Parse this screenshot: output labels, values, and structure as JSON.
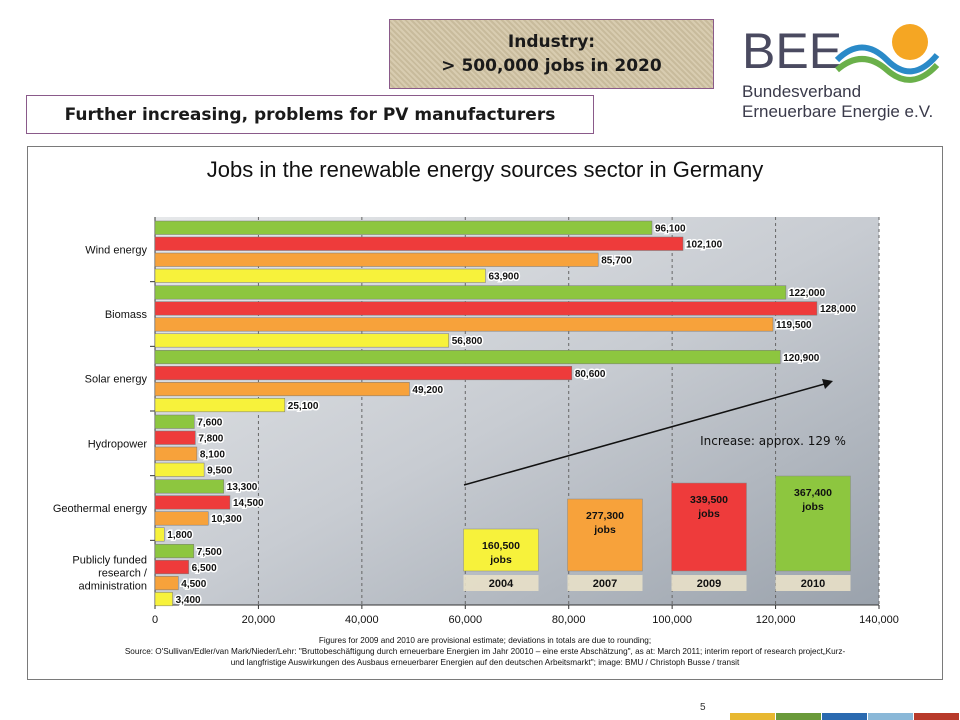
{
  "header": {
    "industry_line1": "Industry:",
    "industry_line2": "> 500,000 jobs in 2020",
    "subtitle": "Further increasing, problems for PV manufacturers"
  },
  "logo": {
    "mark": "BEE",
    "line1": "Bundesverband",
    "line2": "Erneuerbare Energie e.V."
  },
  "chart_data": {
    "type": "bar",
    "orientation": "horizontal",
    "title": "Jobs in the renewable energy sources sector in Germany",
    "categories": [
      "Wind energy",
      "Biomass",
      "Solar energy",
      "Hydropower",
      "Geothermal energy",
      "Publicly funded research / administration"
    ],
    "series": [
      {
        "name": "2010",
        "color": "#8dc63f",
        "values": [
          96100,
          122000,
          120900,
          7600,
          13300,
          7500
        ],
        "labels": [
          "96,100",
          "122,000",
          "120,900",
          "7,600",
          "13,300",
          "7,500"
        ]
      },
      {
        "name": "2009",
        "color": "#ee3b3b",
        "values": [
          102100,
          128000,
          80600,
          7800,
          14500,
          6500
        ],
        "labels": [
          "102,100",
          "128,000",
          "80,600",
          "7,800",
          "14,500",
          "6,500"
        ]
      },
      {
        "name": "2007",
        "color": "#f7a23b",
        "values": [
          85700,
          119500,
          49200,
          8100,
          10300,
          4500
        ],
        "labels": [
          "85,700",
          "119,500",
          "49,200",
          "8,100",
          "10,300",
          "4,500"
        ]
      },
      {
        "name": "2004",
        "color": "#f7f23b",
        "values": [
          63900,
          56800,
          25100,
          9500,
          1800,
          3400
        ],
        "labels": [
          "63,900",
          "56,800",
          "25,100",
          "9,500",
          "1,800",
          "3,400"
        ]
      }
    ],
    "xlim": [
      0,
      140000
    ],
    "xticks": [
      "0",
      "20,000",
      "40,000",
      "60,000",
      "80,000",
      "100,000",
      "120,000",
      "140,000"
    ],
    "grid": "vertical dashed",
    "annotation": "Increase: approx. 129 %",
    "totals": [
      {
        "year": "2004",
        "value": 160500,
        "label_value": "160,500",
        "label_unit": "jobs",
        "color": "#f7f23b"
      },
      {
        "year": "2007",
        "value": 277300,
        "label_value": "277,300",
        "label_unit": "jobs",
        "color": "#f7a23b"
      },
      {
        "year": "2009",
        "value": 339500,
        "label_value": "339,500",
        "label_unit": "jobs",
        "color": "#ee3b3b"
      },
      {
        "year": "2010",
        "value": 367400,
        "label_value": "367,400",
        "label_unit": "jobs",
        "color": "#8dc63f"
      }
    ],
    "footnote_lines": [
      "Figures for 2009 and 2010 are provisional estimate; deviations in totals are due to rounding;",
      "Source: O'Sullivan/Edler/van Mark/Nieder/Lehr: \"Bruttobeschäftigung durch erneuerbare Energien im Jahr 20010 – eine erste Abschätzung\", as at: March 2011; interim report of research project„Kurz-",
      "und langfristige Auswirkungen des Ausbaus erneuerbarer Energien auf den deutschen Arbeitsmarkt\"; image: BMU / Christoph Busse / transit"
    ]
  },
  "footer": {
    "page_number": "5",
    "strip_colors": [
      "#e8b830",
      "#6a9a3a",
      "#2a6ab0",
      "#8ab8d8",
      "#b83a2a"
    ]
  }
}
